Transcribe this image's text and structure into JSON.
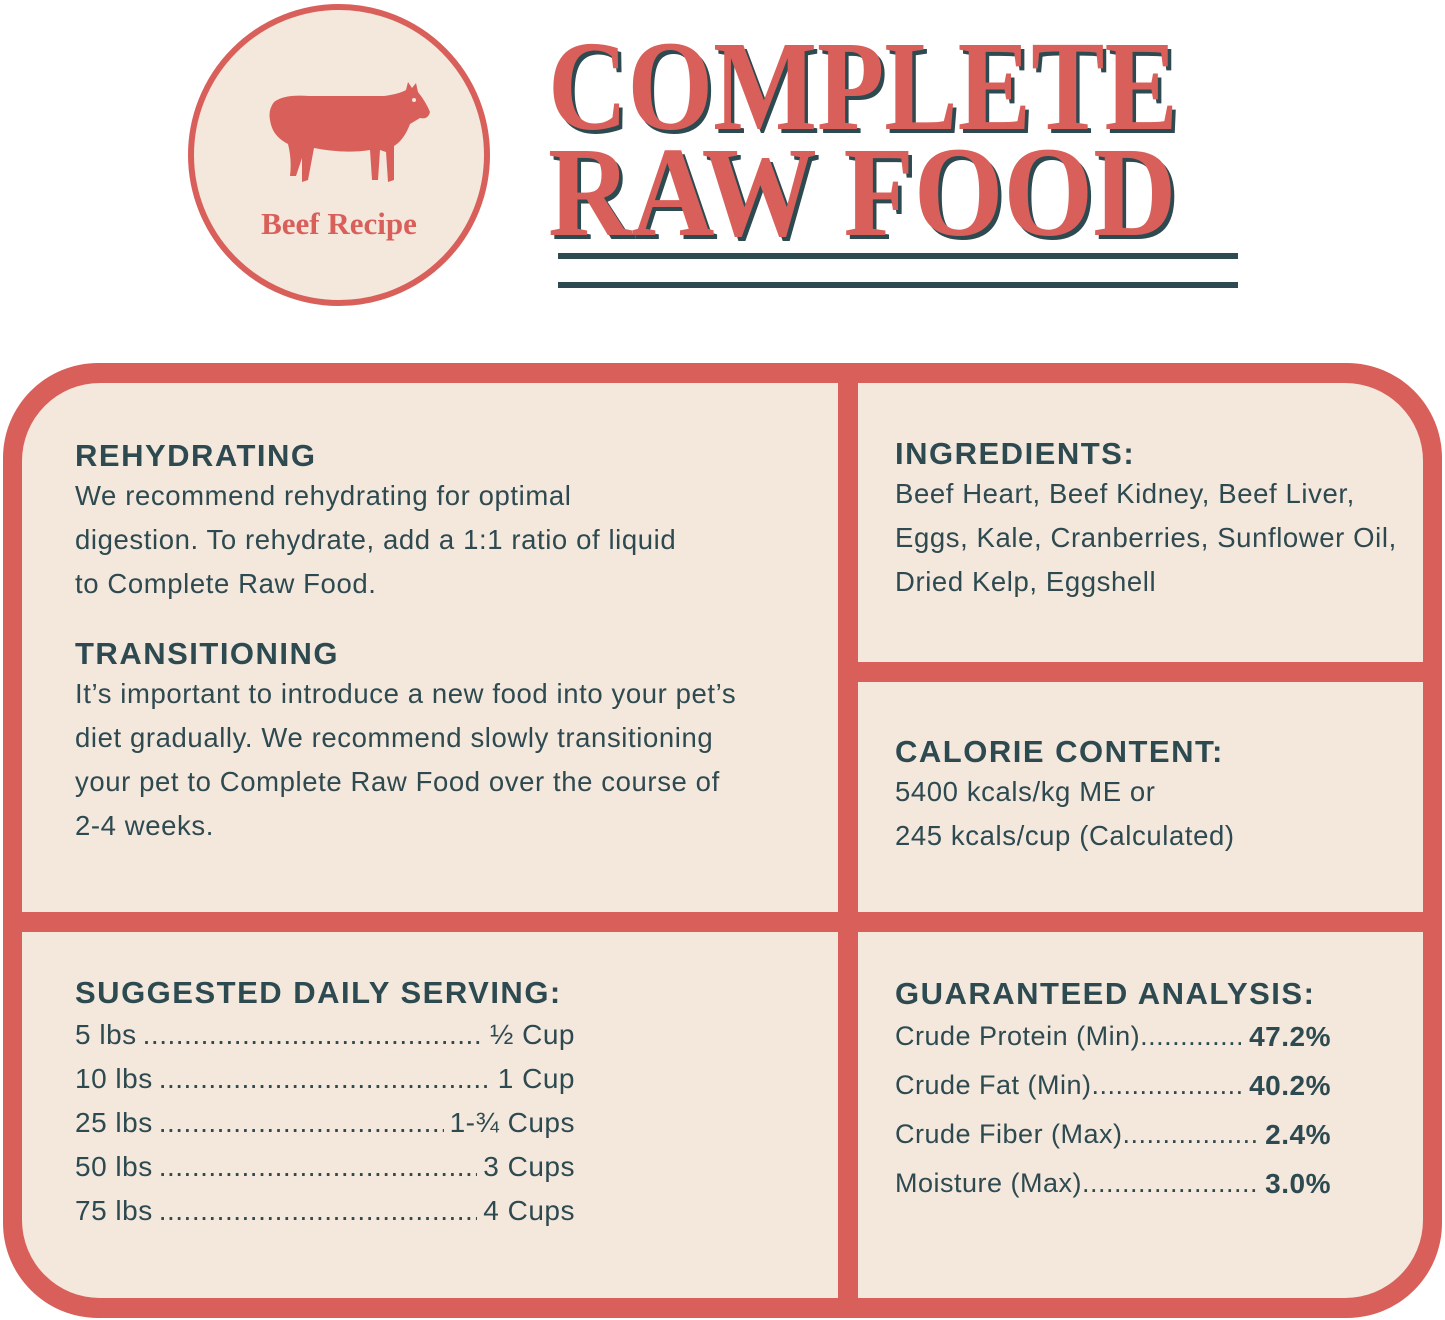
{
  "badge": {
    "label": "Beef Recipe",
    "icon": "cow-icon"
  },
  "title": {
    "line1": "COMPLETE",
    "line2": "RAW FOOD"
  },
  "colors": {
    "accent": "#d9605a",
    "text": "#2e4a51",
    "panel": "#f4e7dc"
  },
  "rehydrating": {
    "heading": "REHYDRATING",
    "body": "We recommend rehydrating for optimal digestion. To rehydrate, add a 1:1 ratio of liquid to Complete Raw Food."
  },
  "transitioning": {
    "heading": "TRANSITIONING",
    "body": "It’s important to introduce a new food into your pet’s diet gradually. We recommend slowly transitioning your pet to Complete Raw Food over the course of 2-4 weeks."
  },
  "ingredients": {
    "heading": "INGREDIENTS:",
    "body": "Beef Heart, Beef Kidney, Beef Liver, Eggs, Kale, Cranberries, Sunflower Oil, Dried Kelp, Eggshell"
  },
  "calories": {
    "heading": "CALORIE CONTENT:",
    "line1": "5400 kcals/kg ME or",
    "line2": "245 kcals/cup (Calculated)"
  },
  "serving": {
    "heading": "SUGGESTED DAILY SERVING:",
    "rows": [
      {
        "weight": "5 lbs",
        "amount": "½ Cup"
      },
      {
        "weight": "10 lbs",
        "amount": "1 Cup"
      },
      {
        "weight": "25 lbs",
        "amount": "1-¾ Cups"
      },
      {
        "weight": "50 lbs",
        "amount": "3 Cups"
      },
      {
        "weight": "75 lbs",
        "amount": "4 Cups"
      }
    ]
  },
  "analysis": {
    "heading": "GUARANTEED ANALYSIS:",
    "rows": [
      {
        "label": "Crude Protein (Min)",
        "value": "47.2%"
      },
      {
        "label": "Crude Fat (Min)",
        "value": "40.2%"
      },
      {
        "label": "Crude Fiber (Max)",
        "value": "2.4%"
      },
      {
        "label": "Moisture (Max)",
        "value": "3.0%"
      }
    ]
  }
}
